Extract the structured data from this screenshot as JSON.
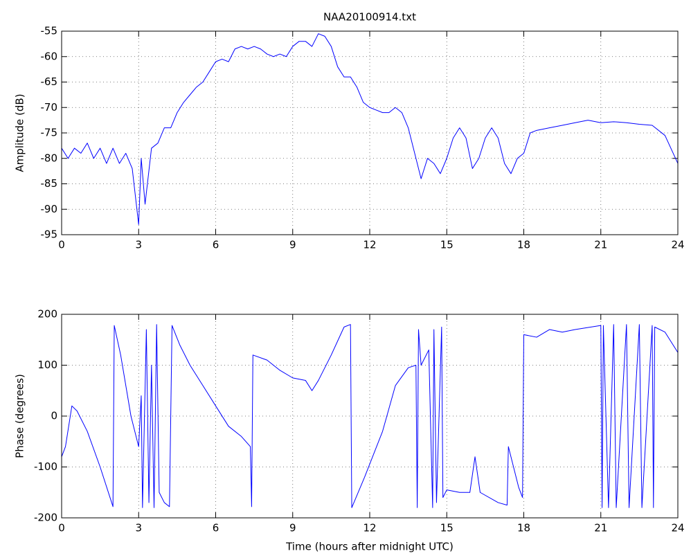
{
  "chart_data": [
    {
      "type": "line",
      "title": "NAA20100914.txt",
      "y_label": "Amplitude (dB)",
      "color": "#0000ff",
      "grid": true,
      "xlim": [
        0,
        24
      ],
      "xticks": [
        0,
        3,
        6,
        9,
        12,
        15,
        18,
        21,
        24
      ],
      "ylim": [
        -95,
        -55
      ],
      "yticks": [
        -95,
        -90,
        -85,
        -80,
        -75,
        -70,
        -65,
        -60,
        -55
      ],
      "x": [
        0,
        0.25,
        0.5,
        0.75,
        1,
        1.25,
        1.5,
        1.75,
        2,
        2.25,
        2.5,
        2.75,
        3,
        3.1,
        3.25,
        3.5,
        3.75,
        4,
        4.25,
        4.5,
        4.75,
        5,
        5.25,
        5.5,
        5.75,
        6,
        6.25,
        6.5,
        6.75,
        7,
        7.25,
        7.5,
        7.75,
        8,
        8.25,
        8.5,
        8.75,
        9,
        9.25,
        9.5,
        9.75,
        10,
        10.25,
        10.5,
        10.75,
        11,
        11.25,
        11.5,
        11.75,
        12,
        12.25,
        12.5,
        12.75,
        13,
        13.25,
        13.5,
        13.75,
        14,
        14.25,
        14.5,
        14.75,
        15,
        15.25,
        15.5,
        15.75,
        16,
        16.25,
        16.5,
        16.75,
        17,
        17.25,
        17.5,
        17.75,
        18,
        18.25,
        18.5,
        19,
        19.5,
        20,
        20.5,
        21,
        21.5,
        22,
        22.5,
        23,
        23.5,
        24
      ],
      "values": [
        -78,
        -80,
        -78,
        -79,
        -77,
        -80,
        -78,
        -81,
        -78,
        -81,
        -79,
        -82,
        -93,
        -80,
        -89,
        -78,
        -77,
        -74,
        -74,
        -71,
        -69,
        -67.5,
        -66,
        -65,
        -63,
        -61,
        -60.5,
        -61,
        -58.5,
        -58,
        -58.5,
        -58,
        -58.5,
        -59.5,
        -60,
        -59.5,
        -60,
        -58,
        -57,
        -57,
        -58,
        -55.5,
        -56,
        -58,
        -62,
        -64,
        -64,
        -66,
        -69,
        -70,
        -70.5,
        -71,
        -71,
        -70,
        -71,
        -74,
        -79,
        -84,
        -80,
        -81,
        -83,
        -80,
        -76,
        -74,
        -76,
        -82,
        -80,
        -76,
        -74,
        -76,
        -81,
        -83,
        -80,
        -79,
        -75,
        -74.5,
        -74,
        -73.5,
        -73,
        -72.5,
        -73,
        -72.8,
        -73,
        -73.3,
        -73.5,
        -75.5,
        -81
      ]
    },
    {
      "type": "line",
      "x_label": "Time (hours after midnight UTC)",
      "y_label": "Phase (degrees)",
      "color": "#0000ff",
      "grid": true,
      "xlim": [
        0,
        24
      ],
      "xticks": [
        0,
        3,
        6,
        9,
        12,
        15,
        18,
        21,
        24
      ],
      "ylim": [
        -200,
        200
      ],
      "yticks": [
        -200,
        -100,
        0,
        100,
        200
      ],
      "x": [
        0,
        0.15,
        0.4,
        0.6,
        1,
        1.5,
        2,
        2.05,
        2.3,
        2.7,
        3,
        3.1,
        3.15,
        3.3,
        3.4,
        3.5,
        3.6,
        3.7,
        3.8,
        4,
        4.2,
        4.3,
        4.6,
        5,
        5.5,
        6,
        6.5,
        7,
        7.35,
        7.4,
        7.45,
        8,
        8.5,
        9,
        9.5,
        9.75,
        10,
        10.5,
        11,
        11.25,
        11.3,
        11.8,
        12.5,
        13,
        13.5,
        13.8,
        13.85,
        13.9,
        14,
        14.3,
        14.45,
        14.5,
        14.6,
        14.8,
        14.85,
        15,
        15.5,
        15.9,
        16.1,
        16.3,
        17,
        17.35,
        17.4,
        17.8,
        17.95,
        18,
        18.5,
        19,
        19.5,
        20,
        21,
        21.05,
        21.1,
        21.3,
        21.5,
        21.6,
        22,
        22.1,
        22.5,
        22.6,
        23,
        23.05,
        23.1,
        23.5,
        24
      ],
      "values": [
        -80,
        -60,
        20,
        10,
        -30,
        -100,
        -178,
        178,
        120,
        0,
        -60,
        40,
        -180,
        170,
        -170,
        100,
        -180,
        180,
        -150,
        -170,
        -178,
        178,
        140,
        100,
        60,
        20,
        -20,
        -40,
        -60,
        -178,
        120,
        110,
        90,
        75,
        70,
        50,
        70,
        120,
        175,
        180,
        -180,
        -120,
        -30,
        60,
        95,
        100,
        -180,
        170,
        100,
        130,
        -180,
        170,
        -170,
        175,
        -160,
        -145,
        -150,
        -150,
        -80,
        -150,
        -170,
        -175,
        -60,
        -140,
        -160,
        160,
        155,
        170,
        165,
        170,
        178,
        -180,
        178,
        -180,
        180,
        -180,
        180,
        -180,
        180,
        -180,
        178,
        -180,
        175,
        165,
        125
      ]
    }
  ]
}
